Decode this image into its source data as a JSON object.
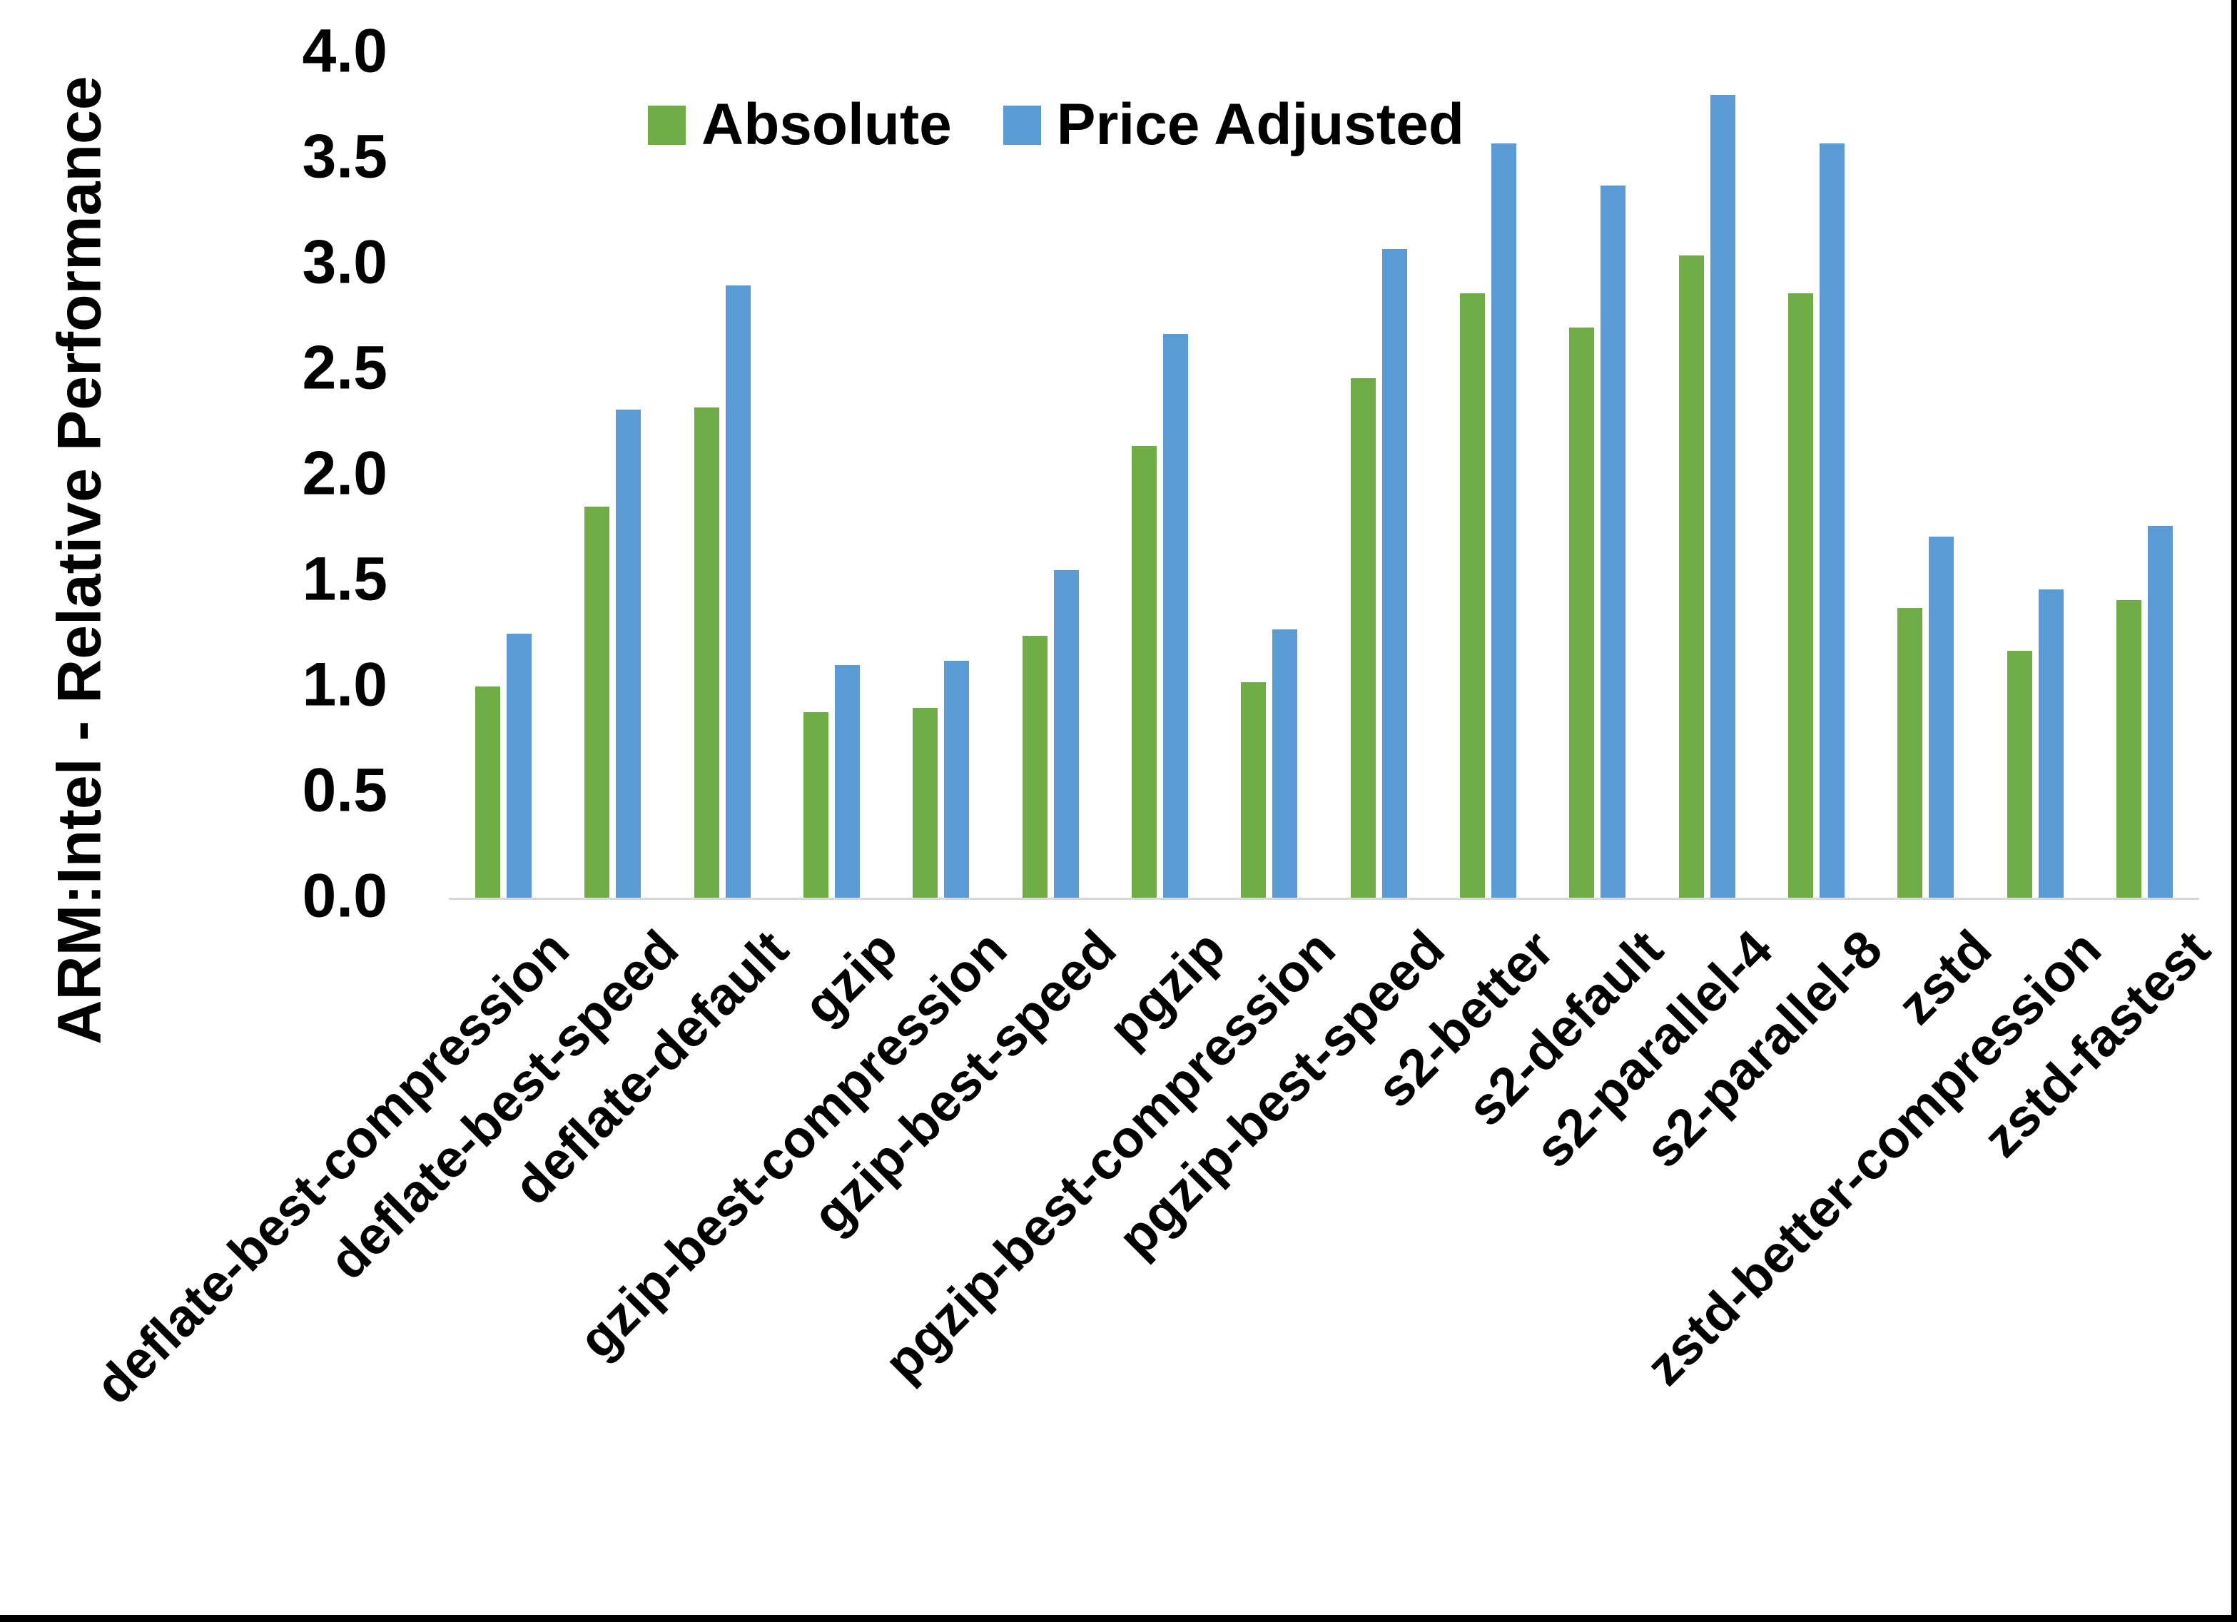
{
  "chart_data": {
    "type": "bar",
    "title": "",
    "ylabel": "ARM:Intel - Relative Performance",
    "xlabel": "",
    "categories": [
      "deflate-best-compression",
      "deflate-best-speed",
      "deflate-default",
      "gzip",
      "gzip-best-compression",
      "gzip-best-speed",
      "pgzip",
      "pgzip-best-compression",
      "pgzip-best-speed",
      "s2-better",
      "s2-default",
      "s2-parallel-4",
      "s2-parallel-8",
      "zstd",
      "zstd-better-compression",
      "zstd-fastest"
    ],
    "series": [
      {
        "name": "Absolute",
        "color": "#70AD47",
        "values": [
          1.0,
          1.85,
          2.32,
          0.88,
          0.9,
          1.24,
          2.14,
          1.02,
          2.46,
          2.86,
          2.7,
          3.04,
          2.86,
          1.37,
          1.17,
          1.41
        ]
      },
      {
        "name": "Price Adjusted",
        "color": "#5B9BD5",
        "values": [
          1.25,
          2.31,
          2.9,
          1.1,
          1.12,
          1.55,
          2.67,
          1.27,
          3.07,
          3.57,
          3.37,
          3.8,
          3.57,
          1.71,
          1.46,
          1.76
        ]
      }
    ],
    "ylim": [
      0.0,
      4.0
    ],
    "ytick_labels": [
      "0.0",
      "0.5",
      "1.0",
      "1.5",
      "2.0",
      "2.5",
      "3.0",
      "3.5",
      "4.0"
    ],
    "grid": false,
    "legend_position": "top-center",
    "axis_line_color": "#D9D9D9",
    "text_color": "#000000",
    "background_color": "#FFFFFF",
    "frame_border_color": "#000000"
  }
}
